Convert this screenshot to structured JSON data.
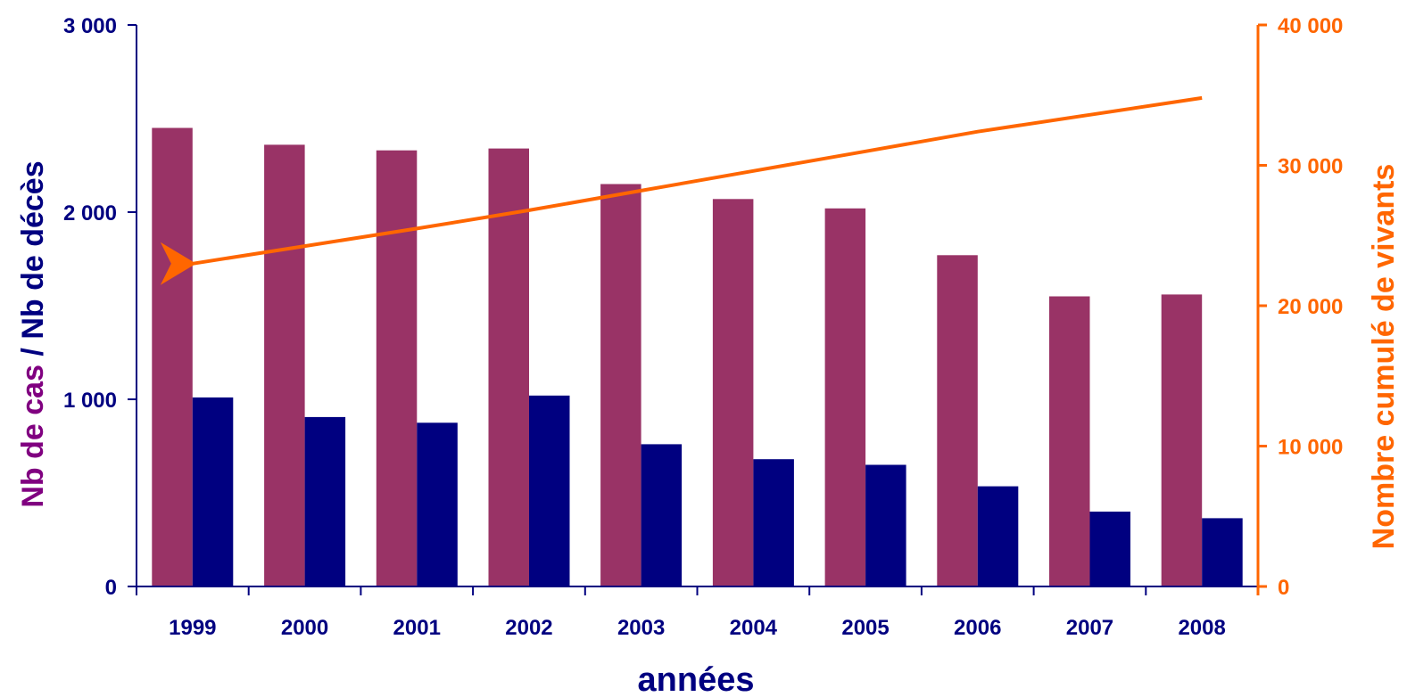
{
  "chart_data": {
    "type": "bar",
    "categories": [
      "1999",
      "2000",
      "2001",
      "2002",
      "2003",
      "2004",
      "2005",
      "2006",
      "2007",
      "2008"
    ],
    "series": [
      {
        "name": "",
        "axis": "left",
        "kind": "bar",
        "color": "#993366",
        "values": [
          2450,
          2360,
          2330,
          2340,
          2150,
          2070,
          2020,
          1770,
          1550,
          1560
        ]
      },
      {
        "name": "",
        "axis": "left",
        "kind": "bar",
        "color": "#000080",
        "values": [
          1010,
          905,
          875,
          1020,
          760,
          680,
          650,
          535,
          400,
          365
        ]
      },
      {
        "name": "",
        "axis": "right",
        "kind": "line",
        "color": "#ff6600",
        "values": [
          23000,
          24250,
          25500,
          26800,
          28200,
          29600,
          31000,
          32400,
          33600,
          34800
        ]
      }
    ],
    "ylabel_left_part1": "Nb de cas",
    "ylabel_left_sep": " / ",
    "ylabel_left_part2": "Nb de décès",
    "ylabel_right": "Nombre cumulé de vivants",
    "xlabel": "années",
    "ylim_left": [
      0,
      3000
    ],
    "ylim_right": [
      0,
      40000
    ],
    "yticks_left": [
      0,
      1000,
      2000,
      3000
    ],
    "yticks_left_labels": [
      "0",
      "1 000",
      "2 000",
      "3 000"
    ],
    "yticks_right": [
      0,
      10000,
      20000,
      30000,
      40000
    ],
    "yticks_right_labels": [
      "0",
      "10 000",
      "20 000",
      "30 000",
      "40 000"
    ],
    "grid": false,
    "colors": {
      "cases": "#993366",
      "deaths": "#000080",
      "cumulative": "#ff6600",
      "left_axis": "#000080",
      "left_title_part1": "#800080",
      "right_axis": "#ff6600"
    }
  }
}
